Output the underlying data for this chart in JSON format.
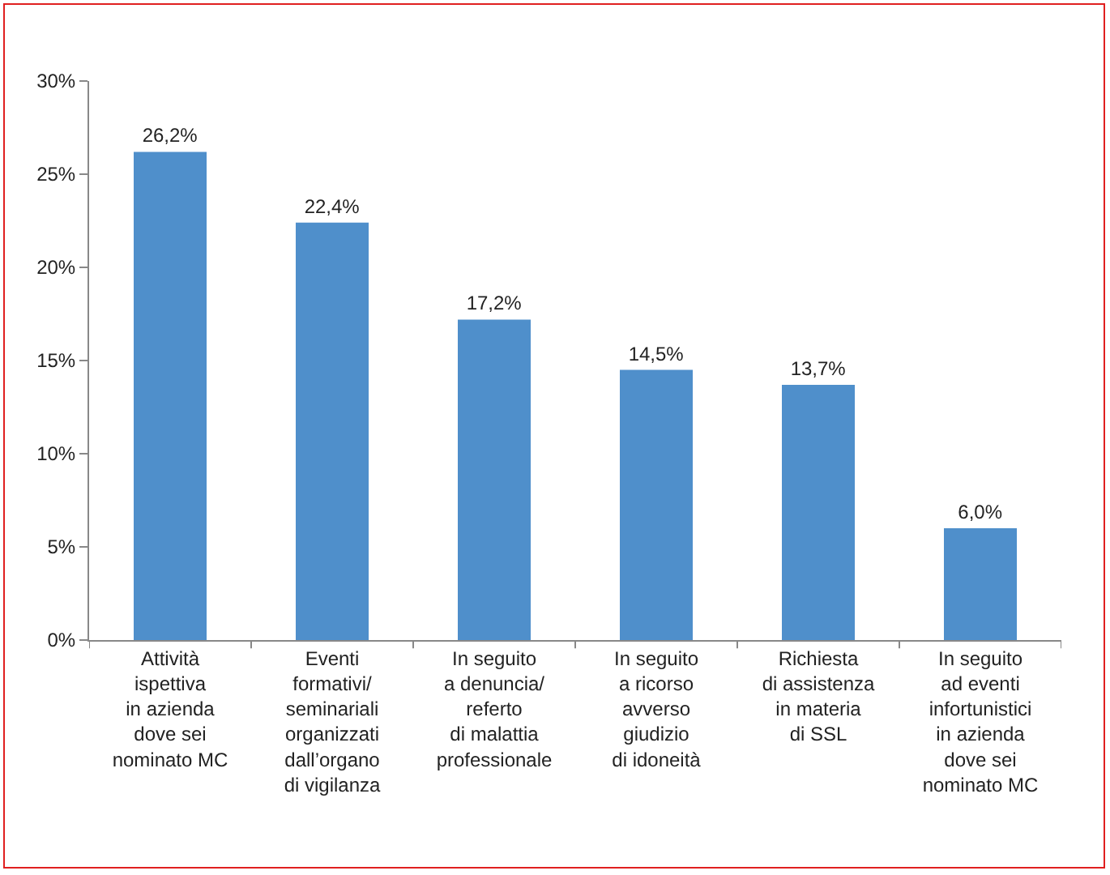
{
  "chart_data": {
    "type": "bar",
    "categories": [
      "Attività\nispettiva\nin azienda\ndove sei\nnominato MC",
      "Eventi\nformativi/\nseminariali\norganizzati\ndall’organo\ndi vigilanza",
      "In seguito\na denuncia/\nreferto\ndi malattia\nprofessionale",
      "In seguito\na ricorso\navverso\ngiudizio\ndi idoneità",
      "Richiesta\ndi assistenza\nin materia\ndi SSL",
      "In seguito\nad eventi\ninfortunistici\nin azienda\ndove sei\nnominato MC"
    ],
    "values": [
      26.2,
      22.4,
      17.2,
      14.5,
      13.7,
      6.0
    ],
    "value_labels": [
      "26,2%",
      "22,4%",
      "17,2%",
      "14,5%",
      "13,7%",
      "6,0%"
    ],
    "color": "#4f8fcb",
    "ylim": [
      0,
      30
    ],
    "yticks": [
      {
        "value": 0,
        "label": "0%"
      },
      {
        "value": 5,
        "label": "5%"
      },
      {
        "value": 10,
        "label": "10%"
      },
      {
        "value": 15,
        "label": "15%"
      },
      {
        "value": 20,
        "label": "20%"
      },
      {
        "value": 25,
        "label": "25%"
      },
      {
        "value": 30,
        "label": "30%"
      }
    ],
    "grid": false,
    "legend": false
  }
}
